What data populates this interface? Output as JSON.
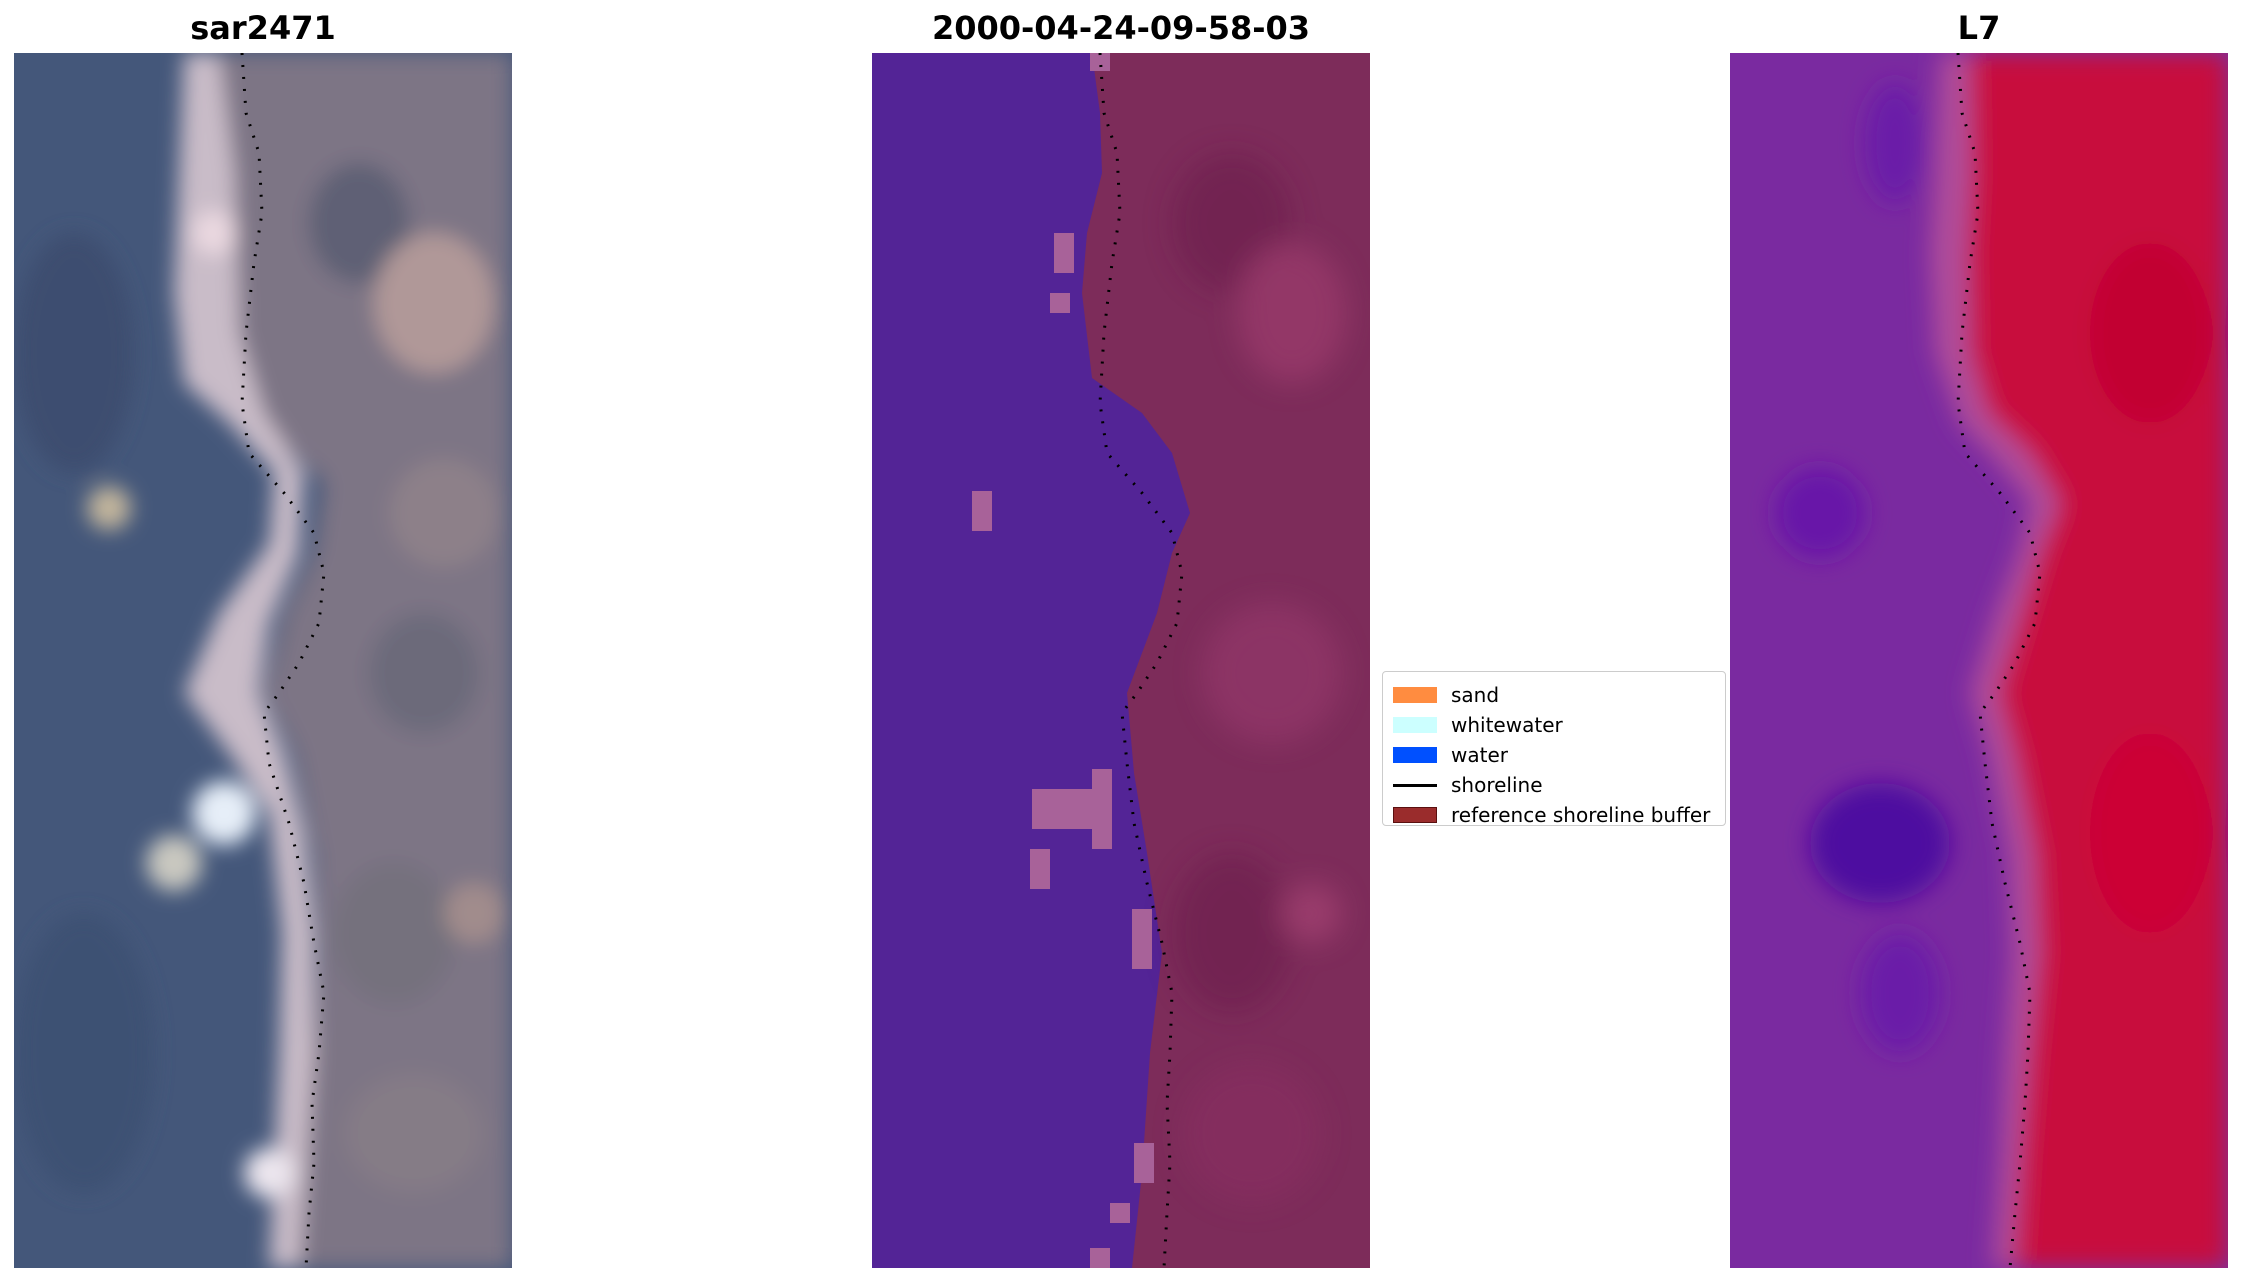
{
  "panels": [
    {
      "title": "sar2471"
    },
    {
      "title": "2000-04-24-09-58-03"
    },
    {
      "title": "L7"
    }
  ],
  "legend": {
    "items": [
      {
        "label": "sand",
        "color": "#ff8c40",
        "kind": "patch"
      },
      {
        "label": "whitewater",
        "color": "#ccffff",
        "kind": "patch"
      },
      {
        "label": "water",
        "color": "#0050ff",
        "kind": "patch"
      },
      {
        "label": "shoreline",
        "color": "#000000",
        "kind": "line"
      },
      {
        "label": "reference shoreline buffer",
        "color": "#9a2c2c",
        "kind": "patch"
      }
    ]
  },
  "colors": {
    "water_class": "#532496",
    "buffer_tint": "#7d2c5a",
    "land_index": "#c80a3c",
    "water_index": "#7a2aa0"
  }
}
